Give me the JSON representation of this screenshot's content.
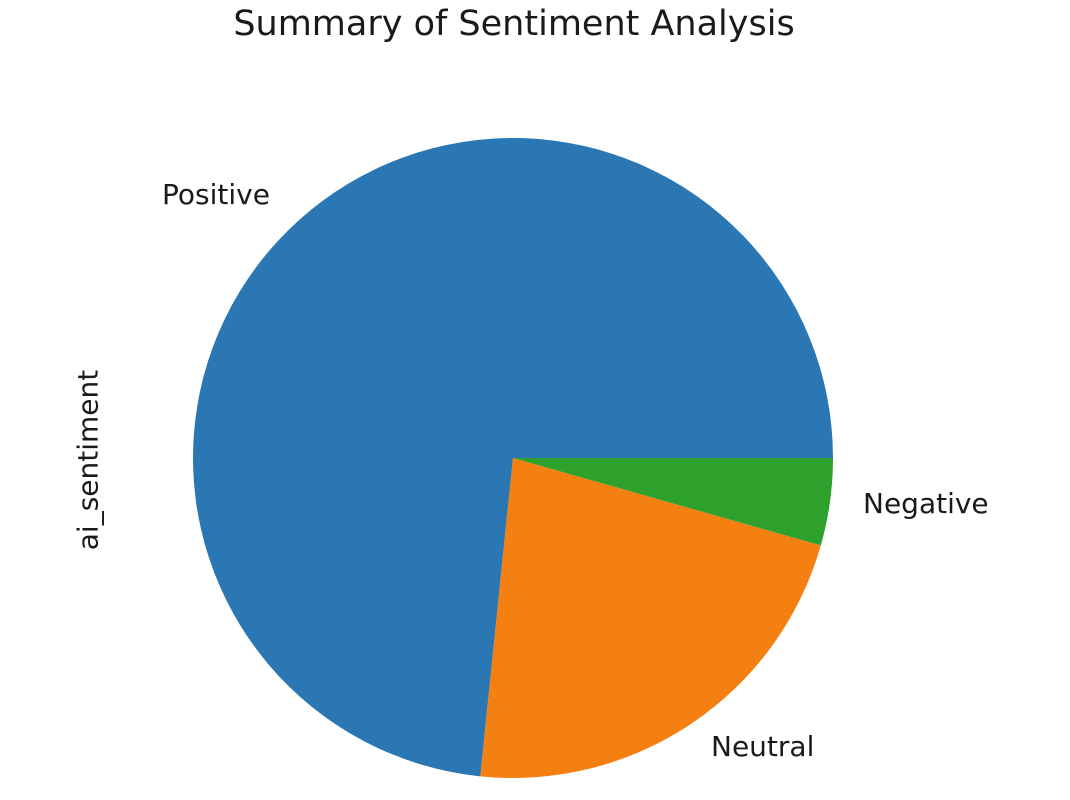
{
  "chart_data": {
    "type": "pie",
    "title": "Summary of Sentiment Analysis",
    "ylabel": "ai_sentiment",
    "xlabel": "",
    "categories": [
      "Positive",
      "Neutral",
      "Negative"
    ],
    "values": [
      73.3,
      22.2,
      4.4
    ],
    "unit": "percent (estimated from slice angles)",
    "colors": [
      "#2a77b4",
      "#f58012",
      "#2ea02c"
    ],
    "start_angle": 0,
    "direction": "counterclockwise",
    "legend": "none (labels placed outside slices)"
  },
  "labels": {
    "positive": "Positive",
    "neutral": "Neutral",
    "negative": "Negative"
  }
}
